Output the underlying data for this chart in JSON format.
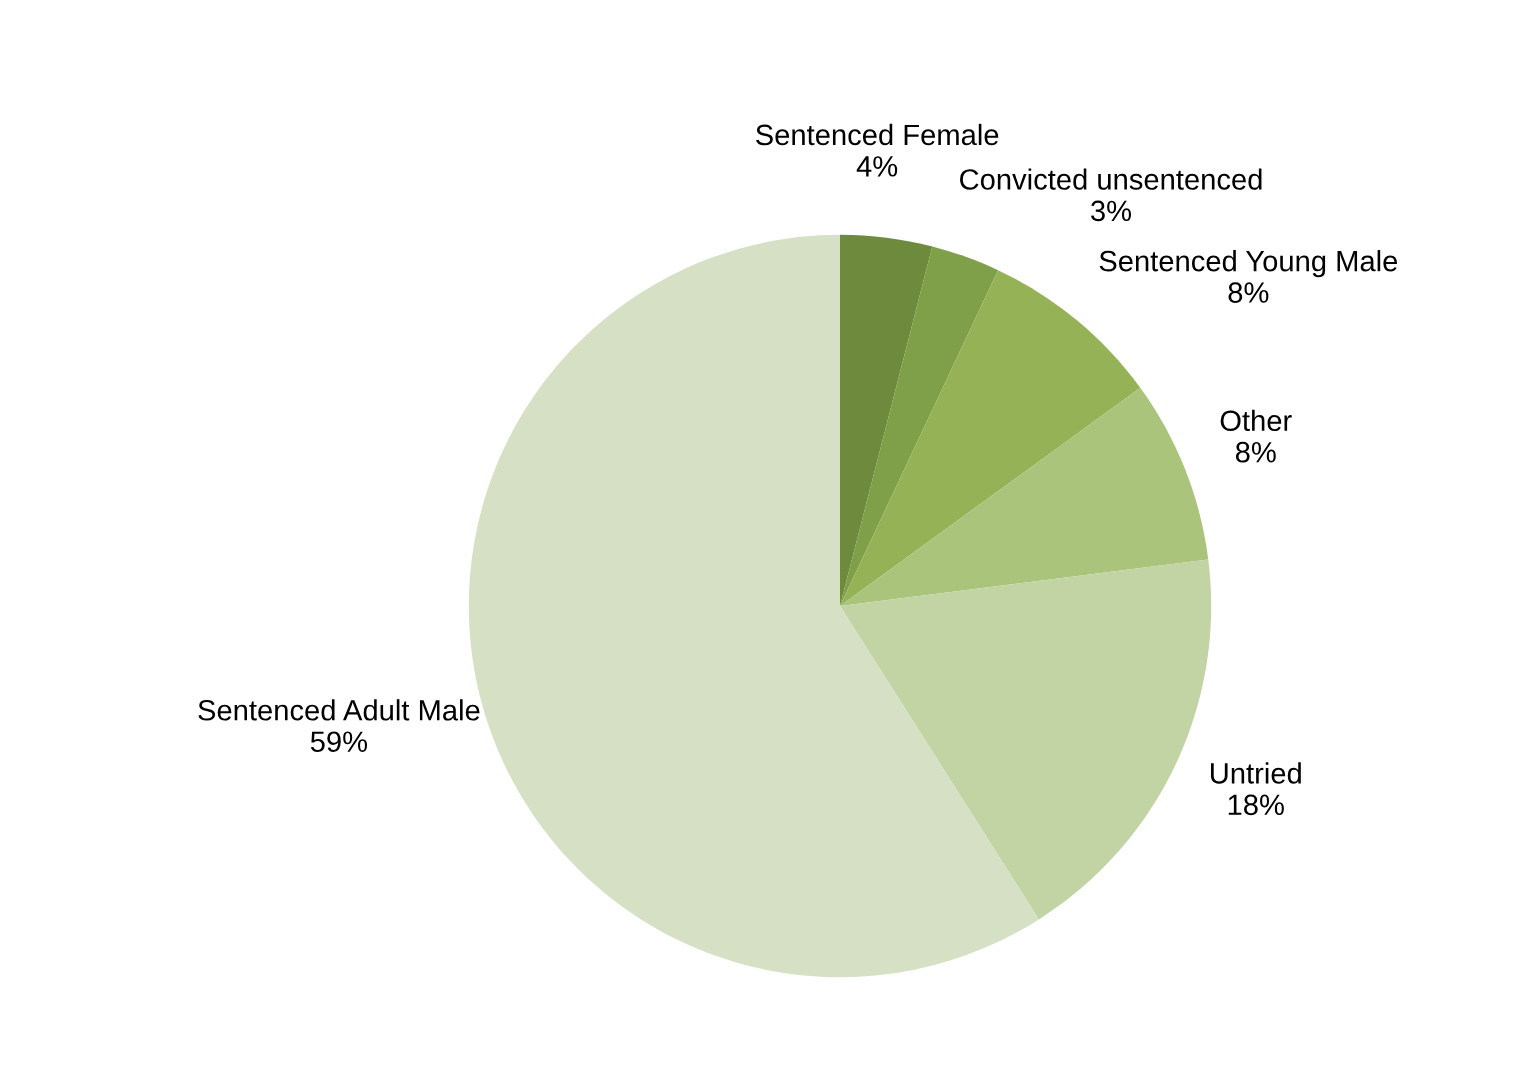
{
  "chart_data": {
    "type": "pie",
    "categories": [
      "Sentenced Female",
      "Convicted unsentenced",
      "Sentenced Young Male",
      "Other",
      "Untried",
      "Sentenced Adult Male"
    ],
    "values": [
      4,
      3,
      8,
      8,
      18,
      59
    ],
    "value_labels": [
      "4%",
      "3%",
      "8%",
      "8%",
      "18%",
      "59%"
    ],
    "colors": [
      "#6e8a3c",
      "#7f9f48",
      "#95b356",
      "#abc47b",
      "#c2d3a4",
      "#d6e0c5"
    ]
  }
}
